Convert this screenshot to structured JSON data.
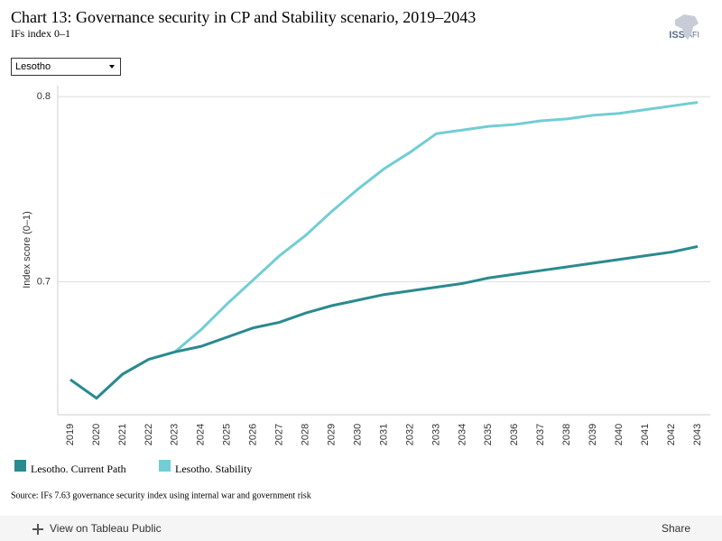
{
  "chart_data": {
    "type": "line",
    "title": "Chart 13: Governance security in CP and Stability scenario, 2019–2043",
    "subtitle": "IFs index 0–1",
    "y_label": "Index score (0–1)",
    "source": "Source: IFs 7.63 governance security index using internal war and government risk",
    "categories": [
      "2019",
      "2020",
      "2021",
      "2022",
      "2023",
      "2024",
      "2025",
      "2026",
      "2027",
      "2028",
      "2029",
      "2030",
      "2031",
      "2032",
      "2033",
      "2034",
      "2035",
      "2036",
      "2037",
      "2038",
      "2039",
      "2040",
      "2041",
      "2042",
      "2043"
    ],
    "series": [
      {
        "name": "Lesotho. Current Path",
        "color": "#2a8a8f",
        "values": [
          0.647,
          0.637,
          0.65,
          0.658,
          0.662,
          0.665,
          0.67,
          0.675,
          0.678,
          0.683,
          0.687,
          0.69,
          0.693,
          0.695,
          0.697,
          0.699,
          0.702,
          0.704,
          0.706,
          0.708,
          0.71,
          0.712,
          0.714,
          0.716,
          0.719
        ]
      },
      {
        "name": "Lesotho. Stability",
        "color": "#72cdd4",
        "values": [
          0.647,
          0.637,
          0.65,
          0.658,
          0.662,
          0.674,
          0.688,
          0.701,
          0.714,
          0.725,
          0.738,
          0.75,
          0.761,
          0.77,
          0.78,
          0.782,
          0.784,
          0.785,
          0.787,
          0.788,
          0.79,
          0.791,
          0.793,
          0.795,
          0.797
        ]
      }
    ],
    "ylim": [
      0.628,
      0.806
    ],
    "yticks": [
      0.7,
      0.8
    ],
    "grid": true
  },
  "ui": {
    "dropdown": "Lesotho",
    "logo_left": "ISS",
    "logo_right": "AFI",
    "view_link": "View on Tableau Public",
    "share": "Share"
  }
}
